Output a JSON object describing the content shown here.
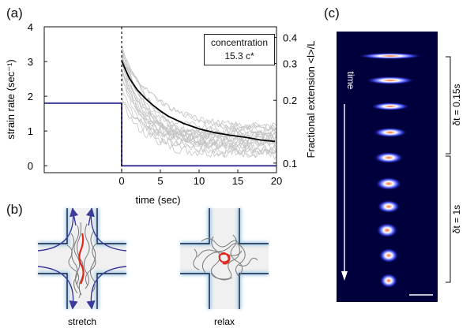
{
  "panels": {
    "a": {
      "label": "(a)"
    },
    "b": {
      "label": "(b)",
      "stretch_label": "stretch",
      "relax_label": "relax"
    },
    "c": {
      "label": "(c)",
      "time_label": "time",
      "dt1_label": "δt = 0.15s",
      "dt2_label": "δt = 1s"
    }
  },
  "concentration": {
    "title": "concentration",
    "value": "15.3 c*"
  },
  "colors": {
    "strain_rate": "#3b3b9a",
    "mean_curve": "#000000",
    "traces": "#c4c4c4",
    "dna_center": "#e0281e",
    "channel_edge": "#9cc8e6"
  },
  "chart_data": {
    "type": "line",
    "title": "",
    "xlabel": "time (sec)",
    "ylabel": "strain rate (sec⁻¹)",
    "y2label": "Fractional extension <l>/L",
    "xlim": [
      -10,
      20
    ],
    "ylim": [
      -0.2,
      4
    ],
    "y2lim": [
      0.09,
      0.45
    ],
    "y2scale": "log",
    "xticks": [
      0,
      5,
      10,
      15,
      20
    ],
    "yticks": [
      0,
      1,
      2,
      3,
      4
    ],
    "y2ticks": [
      0.1,
      0.2,
      0.3,
      0.4
    ],
    "stop_time_marker": 0,
    "series": [
      {
        "name": "strain rate",
        "axis": "left",
        "x": [
          -10,
          0,
          0,
          20
        ],
        "y": [
          1.8,
          1.8,
          0,
          0
        ]
      },
      {
        "name": "mean fractional extension",
        "axis": "right",
        "x": [
          0,
          0.5,
          1,
          2,
          3,
          4,
          5,
          6,
          8,
          10,
          12,
          14,
          16,
          18,
          19.8
        ],
        "y": [
          0.31,
          0.28,
          0.255,
          0.225,
          0.205,
          0.19,
          0.178,
          0.168,
          0.155,
          0.146,
          0.14,
          0.136,
          0.133,
          0.129,
          0.127
        ]
      }
    ],
    "individual_traces": {
      "count": 20,
      "range_at_t0": [
        0.2,
        0.36
      ],
      "range_at_t20": [
        0.11,
        0.15
      ]
    }
  }
}
